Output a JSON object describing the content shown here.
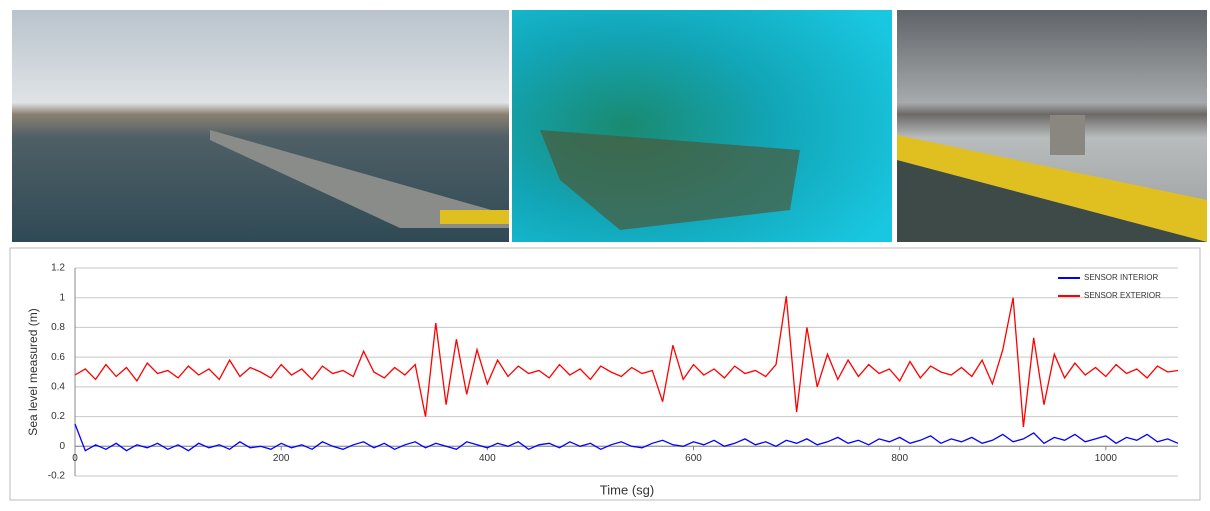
{
  "chart_data": {
    "type": "line",
    "xlabel": "Time (sg)",
    "ylabel": "Sea level measured (m)",
    "xlim": [
      0,
      1070
    ],
    "xticks": [
      0,
      200,
      400,
      600,
      800,
      1000
    ],
    "ylim": [
      -0.2,
      1.2
    ],
    "yticks": [
      -0.2,
      0,
      0.2,
      0.4,
      0.6,
      0.8,
      1,
      1.2
    ],
    "grid": true,
    "legend": "upper right",
    "x": [
      0,
      10,
      20,
      30,
      40,
      50,
      60,
      70,
      80,
      90,
      100,
      110,
      120,
      130,
      140,
      150,
      160,
      170,
      180,
      190,
      200,
      210,
      220,
      230,
      240,
      250,
      260,
      270,
      280,
      290,
      300,
      310,
      320,
      330,
      340,
      350,
      360,
      370,
      380,
      390,
      400,
      410,
      420,
      430,
      440,
      450,
      460,
      470,
      480,
      490,
      500,
      510,
      520,
      530,
      540,
      550,
      560,
      570,
      580,
      590,
      600,
      610,
      620,
      630,
      640,
      650,
      660,
      670,
      680,
      690,
      700,
      710,
      720,
      730,
      740,
      750,
      760,
      770,
      780,
      790,
      800,
      810,
      820,
      830,
      840,
      850,
      860,
      870,
      880,
      890,
      900,
      910,
      920,
      930,
      940,
      950,
      960,
      970,
      980,
      990,
      1000,
      1010,
      1020,
      1030,
      1040,
      1050,
      1060,
      1070
    ],
    "series": [
      {
        "name": "SENSOR INTERIOR",
        "color": "#0000ff",
        "values": [
          0.15,
          -0.03,
          0.01,
          -0.02,
          0.02,
          -0.03,
          0.01,
          -0.01,
          0.02,
          -0.02,
          0.01,
          -0.03,
          0.02,
          -0.01,
          0.01,
          -0.02,
          0.03,
          -0.01,
          0.0,
          -0.02,
          0.02,
          -0.01,
          0.01,
          -0.02,
          0.03,
          0.0,
          -0.02,
          0.01,
          0.03,
          -0.01,
          0.02,
          -0.02,
          0.01,
          0.03,
          -0.01,
          0.02,
          0.0,
          -0.02,
          0.03,
          0.01,
          -0.01,
          0.02,
          0.0,
          0.03,
          -0.02,
          0.01,
          0.02,
          -0.01,
          0.03,
          0.0,
          0.02,
          -0.02,
          0.01,
          0.03,
          0.0,
          -0.01,
          0.02,
          0.04,
          0.01,
          0.0,
          0.03,
          0.01,
          0.04,
          0.0,
          0.02,
          0.05,
          0.01,
          0.03,
          0.0,
          0.04,
          0.02,
          0.05,
          0.01,
          0.03,
          0.06,
          0.02,
          0.04,
          0.01,
          0.05,
          0.03,
          0.06,
          0.02,
          0.04,
          0.07,
          0.02,
          0.05,
          0.03,
          0.06,
          0.02,
          0.04,
          0.08,
          0.03,
          0.05,
          0.09,
          0.02,
          0.06,
          0.04,
          0.08,
          0.03,
          0.05,
          0.07,
          0.02,
          0.06,
          0.04,
          0.08,
          0.03,
          0.05,
          0.02
        ]
      },
      {
        "name": "SENSOR EXTERIOR",
        "color": "#ff0000",
        "values": [
          0.48,
          0.52,
          0.45,
          0.55,
          0.47,
          0.53,
          0.44,
          0.56,
          0.49,
          0.51,
          0.46,
          0.54,
          0.48,
          0.52,
          0.45,
          0.58,
          0.47,
          0.53,
          0.5,
          0.46,
          0.55,
          0.48,
          0.52,
          0.45,
          0.54,
          0.49,
          0.51,
          0.47,
          0.64,
          0.5,
          0.46,
          0.53,
          0.48,
          0.55,
          0.2,
          0.83,
          0.28,
          0.72,
          0.35,
          0.65,
          0.42,
          0.58,
          0.47,
          0.54,
          0.49,
          0.51,
          0.46,
          0.55,
          0.48,
          0.52,
          0.45,
          0.54,
          0.5,
          0.47,
          0.53,
          0.49,
          0.51,
          0.3,
          0.68,
          0.45,
          0.55,
          0.48,
          0.52,
          0.46,
          0.54,
          0.49,
          0.51,
          0.47,
          0.55,
          1.01,
          0.23,
          0.8,
          0.4,
          0.62,
          0.45,
          0.58,
          0.47,
          0.55,
          0.49,
          0.52,
          0.44,
          0.57,
          0.46,
          0.54,
          0.5,
          0.48,
          0.53,
          0.47,
          0.58,
          0.42,
          0.65,
          1.0,
          0.13,
          0.73,
          0.28,
          0.62,
          0.46,
          0.56,
          0.48,
          0.53,
          0.47,
          0.55,
          0.49,
          0.52,
          0.46,
          0.54,
          0.5,
          0.51
        ]
      }
    ]
  }
}
